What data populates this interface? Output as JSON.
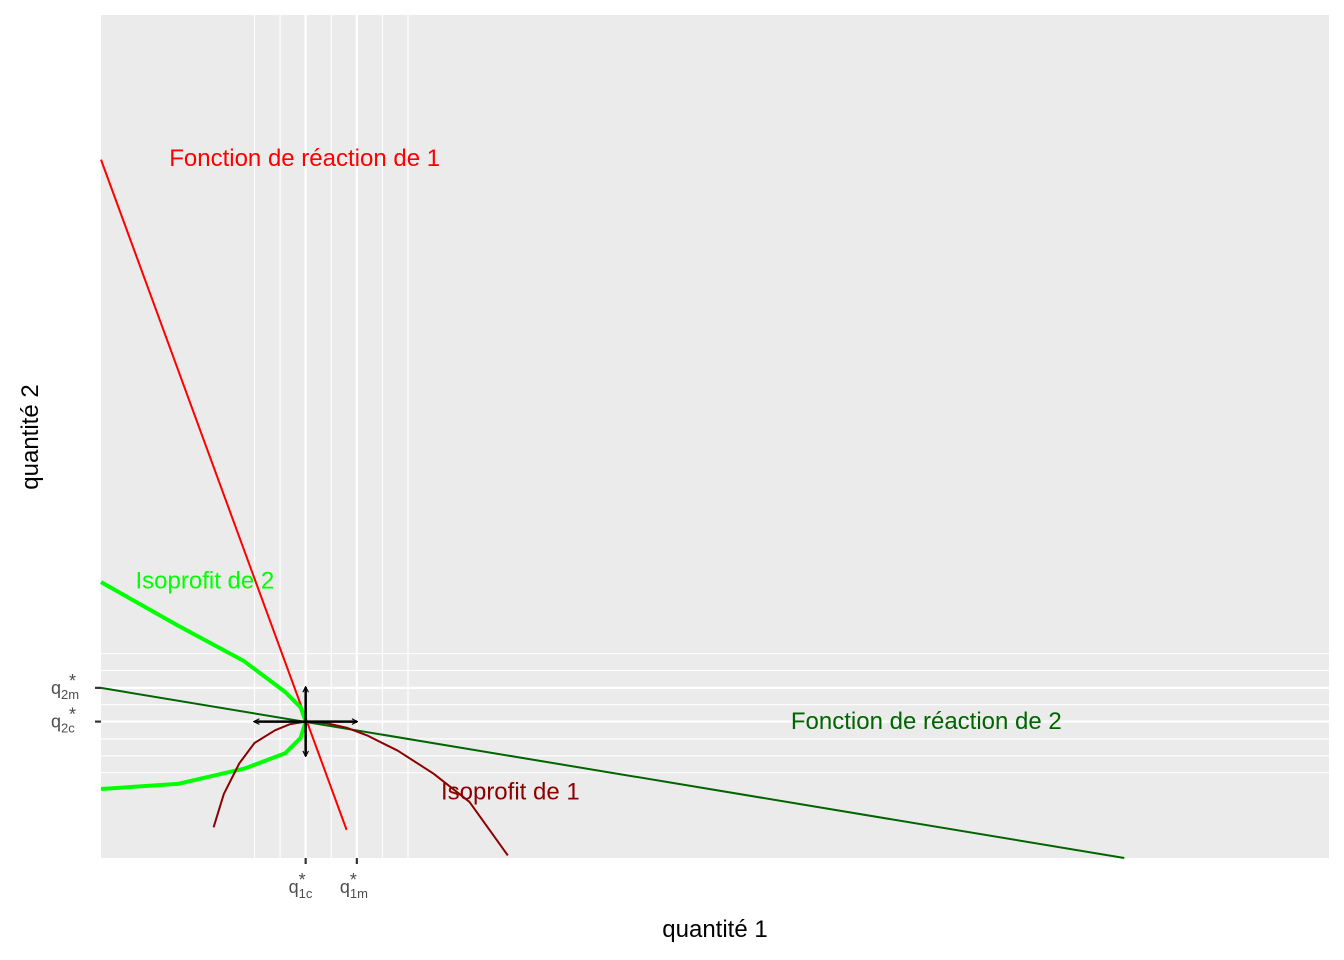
{
  "chart_data": {
    "type": "line",
    "xlabel": "quantité 1",
    "ylabel": "quantité 2",
    "xlim": [
      0,
      24
    ],
    "ylim": [
      0,
      16.5
    ],
    "grid": true,
    "x_ticks": [
      {
        "x": 4,
        "main": "q",
        "sub": "1c",
        "sup": "*"
      },
      {
        "x": 5,
        "main": "q",
        "sub": "1m",
        "sup": "*"
      }
    ],
    "y_ticks": [
      {
        "y": 3.33,
        "main": "q",
        "sub": "2m",
        "sup": "*"
      },
      {
        "y": 2.67,
        "main": "q",
        "sub": "2c",
        "sup": "*"
      }
    ],
    "x_minor_grid": [
      3,
      3.5,
      4.5,
      5.5,
      6
    ],
    "y_minor_grid": [
      1.67,
      2,
      2.33,
      3,
      3.67,
      4
    ],
    "series": [
      {
        "name": "Fonction de réaction de 1",
        "color": "#ff0000",
        "width": 2,
        "x": [
          0,
          4.8
        ],
        "y": [
          13.67,
          0.55
        ]
      },
      {
        "name": "Fonction de réaction de 2",
        "color": "#006400",
        "width": 2,
        "x": [
          0,
          20
        ],
        "y": [
          3.33,
          0
        ]
      },
      {
        "name": "Isoprofit de 2",
        "color": "#00ff00",
        "width": 4,
        "x": [
          0,
          1.5,
          2.8,
          3.6,
          3.9,
          4,
          3.9,
          3.6,
          2.8,
          1.5,
          0
        ],
        "y": [
          5.4,
          4.55,
          3.85,
          3.25,
          2.95,
          2.67,
          2.35,
          2.05,
          1.75,
          1.45,
          1.35
        ]
      },
      {
        "name": "Isoprofit de 1",
        "color": "#8b0000",
        "width": 2,
        "x": [
          2.2,
          2.4,
          2.7,
          3.0,
          3.4,
          3.7,
          4.0,
          4.4,
          4.8,
          5.2,
          5.8,
          6.5,
          7.2,
          7.95
        ],
        "y": [
          0.6,
          1.25,
          1.85,
          2.25,
          2.5,
          2.62,
          2.67,
          2.64,
          2.55,
          2.4,
          2.1,
          1.65,
          1.1,
          0.05
        ]
      }
    ],
    "annotations": [
      {
        "text": "Fonction de réaction de 1",
        "x": 3.98,
        "y": 13.7,
        "color": "#ff0000"
      },
      {
        "text": "Fonction de réaction de 2",
        "x": 16.13,
        "y": 2.68,
        "color": "#006400"
      },
      {
        "text": "Isoprofit de 2",
        "x": 2.03,
        "y": 5.43,
        "color": "#00ff00"
      },
      {
        "text": "Isoprofit de 1",
        "x": 8.0,
        "y": 1.3,
        "color": "#8b0000"
      }
    ],
    "arrows": {
      "center": [
        4,
        2.67
      ],
      "dx": 1,
      "dy": 0.67,
      "color": "#000000"
    }
  }
}
